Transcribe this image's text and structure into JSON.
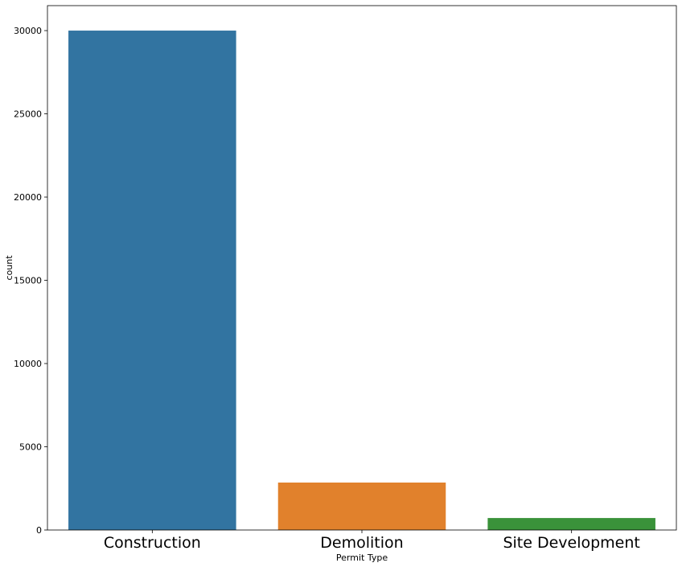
{
  "chart_data": {
    "type": "bar",
    "categories": [
      "Construction",
      "Demolition",
      "Site Development"
    ],
    "values": [
      30000,
      2850,
      720
    ],
    "colors": [
      "#3274a1",
      "#e1812c",
      "#3a923a"
    ],
    "xlabel": "Permit Type",
    "ylabel": "count",
    "ylim": [
      0,
      31500
    ],
    "yticks": [
      0,
      5000,
      10000,
      15000,
      20000,
      25000,
      30000
    ],
    "grid": false
  }
}
